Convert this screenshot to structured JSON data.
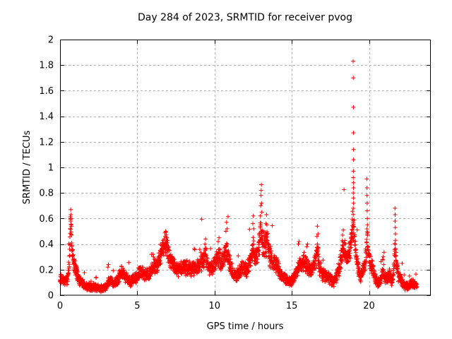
{
  "chart_data": {
    "type": "scatter",
    "title": "Day 284 of 2023, SRMTID for receiver pvog",
    "xlabel": "GPS time / hours",
    "ylabel": "SRMTID / TECUs",
    "xlim": [
      0,
      24
    ],
    "ylim": [
      0,
      2
    ],
    "xticks": [
      0,
      5,
      10,
      15,
      20
    ],
    "yticks": [
      0,
      0.2,
      0.4,
      0.6,
      0.8,
      1,
      1.2,
      1.4,
      1.6,
      1.8,
      2
    ],
    "grid": true,
    "legend": "none",
    "marker": "plus",
    "marker_color": "#ff0000",
    "grid_color": "#b3b3b3",
    "border_color": "#000000",
    "background_color": "#ffffff",
    "sample_interval_hours": 0.008333,
    "t_start": 0.0,
    "t_end": 23.1,
    "envelope_mean_tecu": [
      [
        0.0,
        0.12
      ],
      [
        0.3,
        0.11
      ],
      [
        0.5,
        0.13
      ],
      [
        0.6,
        0.25
      ],
      [
        0.65,
        0.45
      ],
      [
        0.7,
        0.58
      ],
      [
        0.75,
        0.42
      ],
      [
        0.82,
        0.3
      ],
      [
        0.92,
        0.25
      ],
      [
        1.05,
        0.19
      ],
      [
        1.2,
        0.13
      ],
      [
        1.5,
        0.09
      ],
      [
        1.8,
        0.07
      ],
      [
        2.2,
        0.06
      ],
      [
        2.6,
        0.05
      ],
      [
        2.9,
        0.06
      ],
      [
        3.1,
        0.1
      ],
      [
        3.3,
        0.11
      ],
      [
        3.5,
        0.08
      ],
      [
        3.7,
        0.11
      ],
      [
        3.9,
        0.17
      ],
      [
        4.05,
        0.18
      ],
      [
        4.25,
        0.13
      ],
      [
        4.55,
        0.11
      ],
      [
        4.85,
        0.13
      ],
      [
        5.1,
        0.17
      ],
      [
        5.3,
        0.19
      ],
      [
        5.55,
        0.15
      ],
      [
        5.8,
        0.17
      ],
      [
        6.1,
        0.22
      ],
      [
        6.4,
        0.27
      ],
      [
        6.65,
        0.36
      ],
      [
        6.85,
        0.4
      ],
      [
        7.05,
        0.31
      ],
      [
        7.3,
        0.26
      ],
      [
        7.55,
        0.2
      ],
      [
        7.8,
        0.21
      ],
      [
        8.1,
        0.22
      ],
      [
        8.4,
        0.2
      ],
      [
        8.7,
        0.21
      ],
      [
        9.0,
        0.23
      ],
      [
        9.25,
        0.28
      ],
      [
        9.4,
        0.31
      ],
      [
        9.6,
        0.23
      ],
      [
        9.8,
        0.21
      ],
      [
        10.05,
        0.25
      ],
      [
        10.25,
        0.31
      ],
      [
        10.45,
        0.26
      ],
      [
        10.65,
        0.31
      ],
      [
        10.8,
        0.34
      ],
      [
        11.0,
        0.24
      ],
      [
        11.2,
        0.17
      ],
      [
        11.4,
        0.14
      ],
      [
        11.6,
        0.18
      ],
      [
        11.85,
        0.22
      ],
      [
        12.1,
        0.2
      ],
      [
        12.3,
        0.26
      ],
      [
        12.5,
        0.36
      ],
      [
        12.65,
        0.28
      ],
      [
        12.9,
        0.38
      ],
      [
        13.0,
        0.52
      ],
      [
        13.1,
        0.4
      ],
      [
        13.25,
        0.38
      ],
      [
        13.4,
        0.42
      ],
      [
        13.55,
        0.32
      ],
      [
        13.8,
        0.26
      ],
      [
        14.1,
        0.21
      ],
      [
        14.4,
        0.15
      ],
      [
        14.7,
        0.11
      ],
      [
        15.0,
        0.12
      ],
      [
        15.3,
        0.18
      ],
      [
        15.55,
        0.25
      ],
      [
        15.8,
        0.26
      ],
      [
        16.0,
        0.23
      ],
      [
        16.2,
        0.19
      ],
      [
        16.45,
        0.23
      ],
      [
        16.6,
        0.28
      ],
      [
        16.67,
        0.36
      ],
      [
        16.78,
        0.22
      ],
      [
        17.0,
        0.17
      ],
      [
        17.25,
        0.15
      ],
      [
        17.5,
        0.13
      ],
      [
        17.7,
        0.11
      ],
      [
        17.9,
        0.14
      ],
      [
        18.1,
        0.24
      ],
      [
        18.3,
        0.38
      ],
      [
        18.45,
        0.33
      ],
      [
        18.6,
        0.27
      ],
      [
        18.75,
        0.33
      ],
      [
        18.85,
        0.42
      ],
      [
        18.93,
        0.55
      ],
      [
        18.98,
        0.62
      ],
      [
        19.05,
        0.47
      ],
      [
        19.15,
        0.33
      ],
      [
        19.3,
        0.22
      ],
      [
        19.45,
        0.15
      ],
      [
        19.6,
        0.18
      ],
      [
        19.75,
        0.26
      ],
      [
        19.87,
        0.42
      ],
      [
        19.97,
        0.33
      ],
      [
        20.1,
        0.26
      ],
      [
        20.3,
        0.18
      ],
      [
        20.5,
        0.11
      ],
      [
        20.7,
        0.1
      ],
      [
        20.9,
        0.19
      ],
      [
        21.05,
        0.15
      ],
      [
        21.2,
        0.13
      ],
      [
        21.35,
        0.16
      ],
      [
        21.5,
        0.11
      ],
      [
        21.6,
        0.17
      ],
      [
        21.68,
        0.38
      ],
      [
        21.76,
        0.26
      ],
      [
        21.9,
        0.16
      ],
      [
        22.1,
        0.11
      ],
      [
        22.3,
        0.07
      ],
      [
        22.55,
        0.07
      ],
      [
        22.75,
        0.1
      ],
      [
        22.95,
        0.08
      ],
      [
        23.1,
        0.06
      ]
    ],
    "peak_points_tecu": [
      [
        0.66,
        0.52
      ],
      [
        0.68,
        0.6
      ],
      [
        0.69,
        0.67
      ],
      [
        0.7,
        0.63
      ],
      [
        0.72,
        0.55
      ],
      [
        0.74,
        0.47
      ],
      [
        3.1,
        0.22
      ],
      [
        3.13,
        0.24
      ],
      [
        6.02,
        0.32
      ],
      [
        6.05,
        0.3
      ],
      [
        6.8,
        0.46
      ],
      [
        6.84,
        0.5
      ],
      [
        6.88,
        0.45
      ],
      [
        9.38,
        0.4
      ],
      [
        9.42,
        0.44
      ],
      [
        10.24,
        0.42
      ],
      [
        10.29,
        0.45
      ],
      [
        10.74,
        0.5
      ],
      [
        10.78,
        0.57
      ],
      [
        10.82,
        0.52
      ],
      [
        12.48,
        0.56
      ],
      [
        12.51,
        0.62
      ],
      [
        12.54,
        0.52
      ],
      [
        12.97,
        0.62
      ],
      [
        12.99,
        0.7
      ],
      [
        13.01,
        0.78
      ],
      [
        13.02,
        0.82
      ],
      [
        13.04,
        0.72
      ],
      [
        13.06,
        0.65
      ],
      [
        13.33,
        0.56
      ],
      [
        13.36,
        0.63
      ],
      [
        13.39,
        0.55
      ],
      [
        15.43,
        0.4
      ],
      [
        15.47,
        0.42
      ],
      [
        15.97,
        0.38
      ],
      [
        16.02,
        0.4
      ],
      [
        16.63,
        0.46
      ],
      [
        16.66,
        0.54
      ],
      [
        16.7,
        0.48
      ],
      [
        18.29,
        0.47
      ],
      [
        18.33,
        0.51
      ],
      [
        18.97,
        1.83
      ],
      [
        18.98,
        1.7
      ],
      [
        18.99,
        1.47
      ],
      [
        18.99,
        1.27
      ],
      [
        19.0,
        1.14
      ],
      [
        19.0,
        1.06
      ],
      [
        18.99,
        0.97
      ],
      [
        18.98,
        0.92
      ],
      [
        18.99,
        0.88
      ],
      [
        19.0,
        0.84
      ],
      [
        18.98,
        0.8
      ],
      [
        18.99,
        0.76
      ],
      [
        19.0,
        0.72
      ],
      [
        18.98,
        0.68
      ],
      [
        19.86,
        0.91
      ],
      [
        19.87,
        0.84
      ],
      [
        19.87,
        0.78
      ],
      [
        19.88,
        0.72
      ],
      [
        19.88,
        0.66
      ],
      [
        19.89,
        0.6
      ],
      [
        19.9,
        0.55
      ],
      [
        20.88,
        0.28
      ],
      [
        20.92,
        0.3
      ],
      [
        21.68,
        0.68
      ],
      [
        21.69,
        0.63
      ],
      [
        21.69,
        0.58
      ],
      [
        21.7,
        0.53
      ],
      [
        21.71,
        0.48
      ],
      [
        21.71,
        0.43
      ],
      [
        22.62,
        0.15
      ]
    ]
  }
}
